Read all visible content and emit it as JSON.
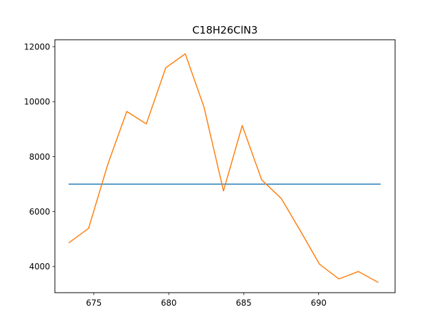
{
  "chart_data": {
    "type": "line",
    "title": "C18H26ClN3",
    "xlabel": "",
    "ylabel": "",
    "xlim": [
      672.4,
      695.1
    ],
    "ylim": [
      3050,
      12250
    ],
    "xticks": [
      675,
      680,
      685,
      690
    ],
    "yticks": [
      4000,
      6000,
      8000,
      10000,
      12000
    ],
    "grid": false,
    "series": [
      {
        "color": "#1f77b4",
        "x": [
          673.35,
          694.1
        ],
        "y": [
          7000,
          7000
        ]
      },
      {
        "color": "#ff7f0e",
        "x": [
          673.35,
          674.65,
          675.95,
          677.2,
          678.5,
          679.8,
          681.1,
          682.35,
          683.65,
          684.9,
          686.2,
          687.5,
          688.8,
          690.05,
          691.35,
          692.65,
          693.95
        ],
        "y": [
          4870,
          5390,
          7750,
          9640,
          9190,
          11230,
          11740,
          9800,
          6750,
          9130,
          7150,
          6480,
          5280,
          4090,
          3550,
          3820,
          3430
        ]
      }
    ]
  }
}
